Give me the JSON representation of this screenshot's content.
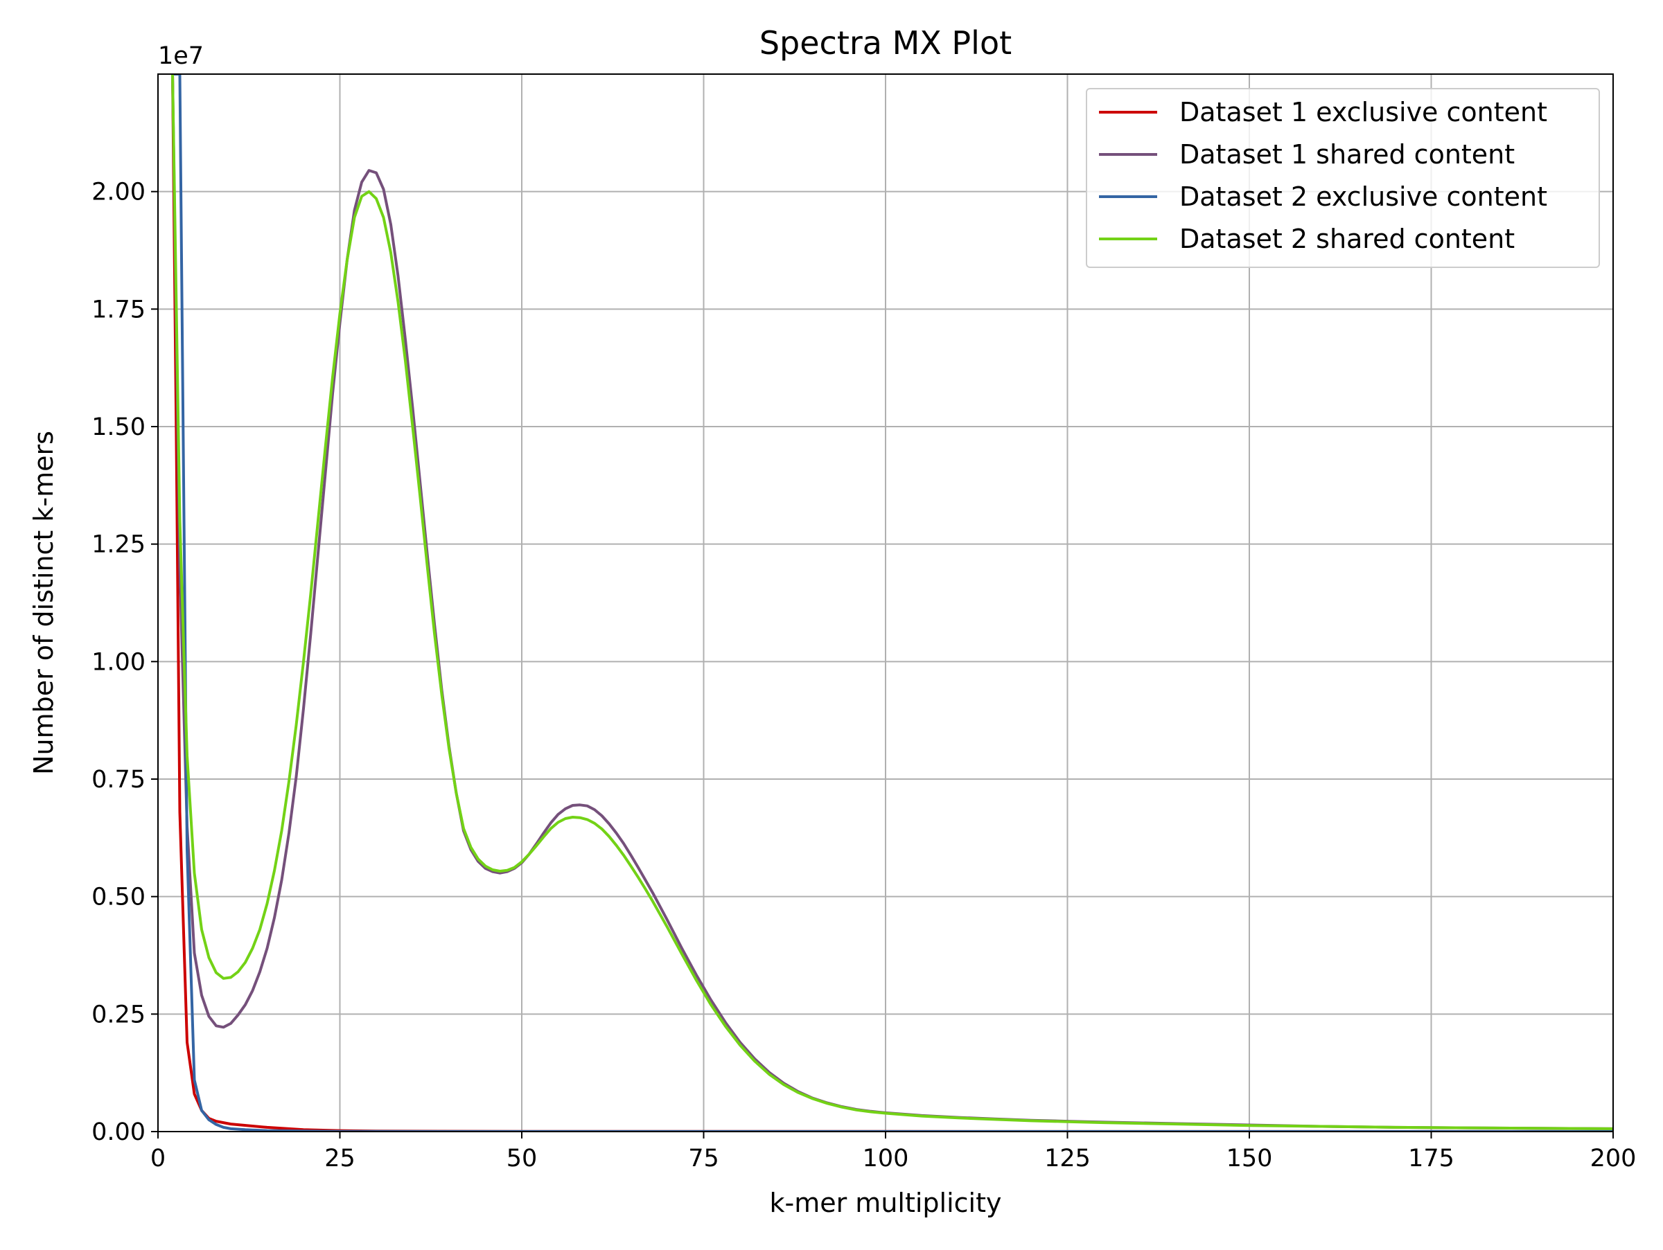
{
  "chart_data": {
    "type": "line",
    "title": "Spectra MX Plot",
    "xlabel": "k-mer multiplicity",
    "ylabel": "Number of distinct k-mers",
    "y_offset_label": "1e7",
    "xlim": [
      0,
      200
    ],
    "ylim": [
      0,
      2.25
    ],
    "grid": true,
    "legend_position": "top-right",
    "x_ticks": [
      0,
      25,
      50,
      75,
      100,
      125,
      150,
      175,
      200
    ],
    "x_tick_labels": [
      "0",
      "25",
      "50",
      "75",
      "100",
      "125",
      "150",
      "175",
      "200"
    ],
    "y_ticks": [
      0,
      0.25,
      0.5,
      0.75,
      1.0,
      1.25,
      1.5,
      1.75,
      2.0
    ],
    "y_tick_labels": [
      "0.00",
      "0.25",
      "0.50",
      "0.75",
      "1.00",
      "1.25",
      "1.50",
      "1.75",
      "2.00"
    ],
    "series": [
      {
        "name": "Dataset 1 exclusive content",
        "color": "#cc0000",
        "x": [
          2,
          2.5,
          3,
          4,
          5,
          6,
          7,
          8,
          10,
          15,
          20,
          25,
          30,
          50,
          100,
          150,
          200
        ],
        "y": [
          2.25,
          1.5,
          0.68,
          0.19,
          0.08,
          0.045,
          0.028,
          0.022,
          0.016,
          0.009,
          0.004,
          0.002,
          0.001,
          0.0005,
          0.0003,
          0.0002,
          0.0001
        ]
      },
      {
        "name": "Dataset 1 shared content",
        "color": "#75507b",
        "x": [
          2,
          3,
          4,
          5,
          6,
          7,
          8,
          9,
          10,
          11,
          12,
          13,
          14,
          15,
          16,
          17,
          18,
          19,
          20,
          21,
          22,
          23,
          24,
          25,
          26,
          27,
          28,
          29,
          30,
          31,
          32,
          33,
          34,
          35,
          36,
          37,
          38,
          39,
          40,
          41,
          42,
          43,
          44,
          45,
          46,
          47,
          48,
          49,
          50,
          51,
          52,
          53,
          54,
          55,
          56,
          57,
          58,
          59,
          60,
          61,
          62,
          63,
          64,
          65,
          66,
          67,
          68,
          70,
          72,
          74,
          76,
          78,
          80,
          82,
          84,
          86,
          88,
          90,
          92,
          94,
          96,
          98,
          100,
          105,
          110,
          115,
          120,
          125,
          130,
          140,
          150,
          160,
          170,
          180,
          190,
          200
        ],
        "y": [
          2.25,
          1.2,
          0.65,
          0.38,
          0.29,
          0.245,
          0.225,
          0.222,
          0.23,
          0.248,
          0.27,
          0.3,
          0.34,
          0.39,
          0.455,
          0.535,
          0.635,
          0.755,
          0.9,
          1.06,
          1.23,
          1.4,
          1.57,
          1.72,
          1.855,
          1.96,
          2.02,
          2.045,
          2.04,
          2.005,
          1.93,
          1.82,
          1.685,
          1.54,
          1.385,
          1.23,
          1.08,
          0.94,
          0.82,
          0.72,
          0.64,
          0.6,
          0.575,
          0.56,
          0.553,
          0.55,
          0.553,
          0.56,
          0.572,
          0.59,
          0.612,
          0.635,
          0.657,
          0.675,
          0.687,
          0.694,
          0.695,
          0.693,
          0.685,
          0.672,
          0.655,
          0.635,
          0.613,
          0.588,
          0.562,
          0.535,
          0.508,
          0.45,
          0.39,
          0.333,
          0.28,
          0.232,
          0.19,
          0.155,
          0.126,
          0.103,
          0.085,
          0.071,
          0.061,
          0.053,
          0.047,
          0.043,
          0.04,
          0.034,
          0.03,
          0.027,
          0.024,
          0.022,
          0.02,
          0.017,
          0.014,
          0.011,
          0.009,
          0.008,
          0.007,
          0.006
        ]
      },
      {
        "name": "Dataset 2 exclusive content",
        "color": "#3465a4",
        "x": [
          2,
          2.5,
          3,
          4,
          5,
          6,
          7,
          8,
          9,
          10,
          12,
          15,
          20,
          25,
          30,
          50,
          100,
          150,
          200
        ],
        "y": [
          2.25,
          2.25,
          2.25,
          0.6,
          0.11,
          0.045,
          0.025,
          0.015,
          0.009,
          0.006,
          0.004,
          0.002,
          0.001,
          0.0005,
          0.0003,
          0.0002,
          0.0001,
          0.0001,
          0.0001
        ]
      },
      {
        "name": "Dataset 2 shared content",
        "color": "#73d216",
        "x": [
          2,
          3,
          4,
          5,
          6,
          7,
          8,
          9,
          10,
          11,
          12,
          13,
          14,
          15,
          16,
          17,
          18,
          19,
          20,
          21,
          22,
          23,
          24,
          25,
          26,
          27,
          28,
          29,
          30,
          31,
          32,
          33,
          34,
          35,
          36,
          37,
          38,
          39,
          40,
          41,
          42,
          43,
          44,
          45,
          46,
          47,
          48,
          49,
          50,
          51,
          52,
          53,
          54,
          55,
          56,
          57,
          58,
          59,
          60,
          61,
          62,
          63,
          64,
          65,
          66,
          67,
          68,
          70,
          72,
          74,
          76,
          78,
          80,
          82,
          84,
          86,
          88,
          90,
          92,
          94,
          96,
          98,
          100,
          105,
          110,
          115,
          120,
          125,
          130,
          140,
          150,
          160,
          170,
          180,
          190,
          200
        ],
        "y": [
          2.25,
          1.3,
          0.8,
          0.55,
          0.43,
          0.37,
          0.338,
          0.326,
          0.328,
          0.34,
          0.36,
          0.39,
          0.43,
          0.485,
          0.555,
          0.64,
          0.745,
          0.865,
          1.0,
          1.145,
          1.3,
          1.455,
          1.605,
          1.74,
          1.855,
          1.945,
          1.99,
          2.0,
          1.985,
          1.945,
          1.87,
          1.765,
          1.64,
          1.5,
          1.355,
          1.205,
          1.06,
          0.93,
          0.815,
          0.72,
          0.645,
          0.605,
          0.58,
          0.565,
          0.557,
          0.554,
          0.556,
          0.562,
          0.574,
          0.59,
          0.608,
          0.627,
          0.645,
          0.658,
          0.666,
          0.669,
          0.668,
          0.664,
          0.656,
          0.644,
          0.628,
          0.609,
          0.588,
          0.565,
          0.541,
          0.516,
          0.49,
          0.435,
          0.378,
          0.322,
          0.27,
          0.224,
          0.184,
          0.15,
          0.122,
          0.1,
          0.083,
          0.07,
          0.06,
          0.052,
          0.046,
          0.042,
          0.039,
          0.033,
          0.029,
          0.026,
          0.023,
          0.021,
          0.019,
          0.016,
          0.013,
          0.011,
          0.009,
          0.008,
          0.007,
          0.006
        ]
      }
    ]
  }
}
